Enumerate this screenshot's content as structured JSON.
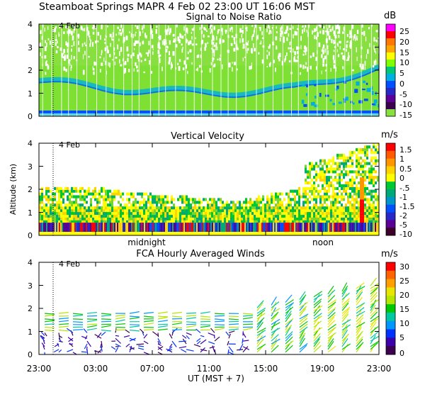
{
  "figure": {
    "header": "Steamboat Springs  MAPR  4 Feb 02  23:00 UT  16:06  MST",
    "xlabel": "UT  (MST + 7)",
    "ylabel": "Altitude (km)",
    "x_ticks": [
      "23:00",
      "03:00",
      "07:00",
      "11:00",
      "15:00",
      "19:00",
      "23:00"
    ],
    "date_marker": "4 Feb"
  },
  "chart_data": [
    {
      "type": "heatmap",
      "title": "Signal to Noise Ratio",
      "ylim": [
        0,
        4
      ],
      "y_ticks": [
        "0",
        "1",
        "2",
        "3",
        "4"
      ],
      "colorbar": {
        "unit": "dB",
        "labels": [
          "25",
          "20",
          "15",
          "10",
          "5",
          "0",
          "-5",
          "-10",
          "-15"
        ],
        "colors": [
          "#ff00ff",
          "#ff0000",
          "#ff7800",
          "#ffa500",
          "#ffff00",
          "#80ff00",
          "#00c878",
          "#00b0e0",
          "#0050ff",
          "#2828c8",
          "#5a0096",
          "#3c0050",
          "#88e040"
        ]
      },
      "annotations": [],
      "features": "green background with noisy white speckle above 2 km; blue layer rising from ~1 km to ~1.8 km late in the period; dark blue strip near ground"
    },
    {
      "type": "heatmap",
      "title": "Vertical Velocity",
      "ylim": [
        0,
        4
      ],
      "y_ticks": [
        "0",
        "1",
        "2",
        "3",
        "4"
      ],
      "colorbar": {
        "unit": "m/s",
        "labels": [
          "1.5",
          "1",
          "0.5",
          "0",
          "-.5",
          "-1",
          "-1.5",
          "-2",
          "-5",
          "-10"
        ],
        "colors": [
          "#ff0000",
          "#ff5a00",
          "#ff9600",
          "#ffd200",
          "#ffff00",
          "#00c832",
          "#00aa78",
          "#0096c8",
          "#0050ff",
          "#2828c8",
          "#5a0096",
          "#3c0028"
        ]
      },
      "annotations": [
        "midnight",
        "noon"
      ],
      "features": "mostly near-zero (yellow/green) returns below ~2 km, deep convective column late in the period up to 4 km"
    },
    {
      "type": "scatter",
      "title": "FCA Hourly Averaged Winds",
      "ylim": [
        0,
        4
      ],
      "y_ticks": [
        "0",
        "1",
        "2",
        "3",
        "4"
      ],
      "colorbar": {
        "unit": "m/s",
        "labels": [
          "30",
          "25",
          "20",
          "15",
          "10",
          "5",
          "0"
        ],
        "colors": [
          "#ff0000",
          "#ff6400",
          "#ffa000",
          "#e6e600",
          "#b4e600",
          "#00c800",
          "#00c8a0",
          "#0096ff",
          "#0032ff",
          "#3c00aa",
          "#3c0050"
        ]
      },
      "annotations": [],
      "features": "wind barbs every hour at ~0.1 km spacing; strong winds (15-25 m/s) from 15:00 UT onward"
    }
  ]
}
